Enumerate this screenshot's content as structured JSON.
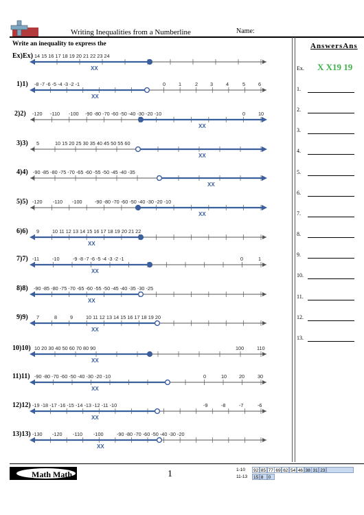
{
  "header": {
    "title": "Writing Inequalities from a Numberline",
    "name_label": "Name:"
  },
  "instruction": "Write an inequality to express the",
  "answers_header": "AnswersAns",
  "problems": [
    {
      "label": "Ex)Ex)",
      "ticks": [
        "14 15 16 17 18 19 20 21 22 23 24"
      ],
      "xx": "XX"
    },
    {
      "label": "1)1)",
      "ticks": [
        "-8 -7 -6 -5 -4 -3 -2 -1",
        "0",
        "1",
        "2",
        "3",
        "4",
        "5",
        "6"
      ],
      "xx": "XX"
    },
    {
      "label": "2)2)",
      "ticks": [
        "-120",
        "-110",
        "-100",
        "-90 -80 -70 -60 -50 -40 -30 -20 -10",
        "0",
        "10"
      ],
      "xx": "XX"
    },
    {
      "label": "3)3)",
      "ticks": [
        "5",
        "10 15 20 25 30 35 40 45 50 55 60"
      ],
      "xx": "XX"
    },
    {
      "label": "4)4)",
      "ticks": [
        "-90 -85 -80 -75 -70 -65 -60 -55 -50 -45 -40 -35"
      ],
      "xx": "XX"
    },
    {
      "label": "5)5)",
      "ticks": [
        "-120",
        "-110",
        "-100",
        "-90 -80 -70 -60 -50 -40 -30 -20 -10"
      ],
      "xx": "XX"
    },
    {
      "label": "6)6)",
      "ticks": [
        "9",
        "10 11 12 13 14 15 16 17 18 19 20 21 22"
      ],
      "xx": "XX"
    },
    {
      "label": "7)7)",
      "ticks": [
        "-11",
        "-10",
        "-9 -8 -7 -6 -5 -4 -3 -2 -1",
        "0",
        "1"
      ],
      "xx": "XX"
    },
    {
      "label": "8)8)",
      "ticks": [
        "-90 -85 -80 -75 -70 -65 -60 -55 -50 -45 -40 -35 -30 -25"
      ],
      "xx": "XX"
    },
    {
      "label": "9)9)",
      "ticks": [
        "7",
        "8",
        "9",
        "10 11 12 13 14 15 16 17 18 19 20"
      ],
      "xx": "XX"
    },
    {
      "label": "10)10)",
      "ticks": [
        "10 20 30 40 50 60 70 80 90",
        "100",
        "110"
      ],
      "xx": "XX"
    },
    {
      "label": "11)11)",
      "ticks": [
        "-90 -80 -70 -60 -50 -40 -30 -20 -10",
        "0",
        "10",
        "20",
        "30"
      ],
      "xx": "XX"
    },
    {
      "label": "12)12)",
      "ticks": [
        "-19 -18 -17 -16 -15 -14 -13 -12 -11 -10",
        "-9",
        "-8",
        "-7",
        "-6"
      ],
      "xx": "XX"
    },
    {
      "label": "13)13)",
      "ticks": [
        "-130",
        "-120",
        "-110",
        "-100",
        "-90 -80 -70 -60 -50 -40 -30 -20"
      ],
      "xx": "XX"
    }
  ],
  "answers": {
    "ex_label": "Ex.",
    "ex_value": "X X19 19",
    "labels": [
      "1.",
      "2.",
      "3.",
      "4.",
      "5.",
      "6.",
      "7.",
      "8.",
      "9.",
      "10.",
      "11.",
      "12.",
      "13."
    ]
  },
  "footer": {
    "logo_text": "Math Math",
    "page_number": "1",
    "key_row1_label": "1-10",
    "key_row1_cells": [
      "92",
      "85",
      "77",
      "69",
      "62",
      "54",
      "46",
      "38",
      "31",
      "23"
    ],
    "key_row2_label": "11-13",
    "key_row2_cells": [
      "15",
      "8",
      "0"
    ]
  },
  "colors": {
    "highlight": "#3a5f9c",
    "answer_green": "#3cb34a",
    "logo_red": "#b23a3a",
    "logo_cross": "#7fa8c2"
  }
}
